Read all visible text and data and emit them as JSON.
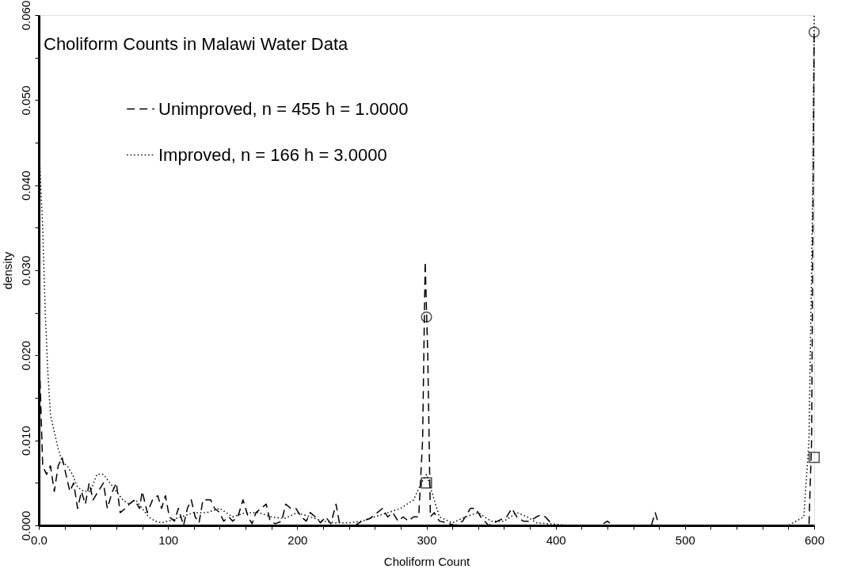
{
  "chart_data": {
    "type": "line",
    "title": "Choliform Counts in Malawi Water Data",
    "xlabel": "Choliform Count",
    "ylabel": "density",
    "xlim": [
      0,
      600
    ],
    "ylim": [
      0,
      0.06
    ],
    "xticks": [
      {
        "value": 0,
        "label": "0.0"
      },
      {
        "value": 20,
        "label": null
      },
      {
        "value": 40,
        "label": null
      },
      {
        "value": 60,
        "label": null
      },
      {
        "value": 80,
        "label": null
      },
      100,
      {
        "value": 120,
        "label": null
      },
      {
        "value": 140,
        "label": null
      },
      {
        "value": 160,
        "label": null
      },
      {
        "value": 180,
        "label": null
      },
      200,
      {
        "value": 220,
        "label": null
      },
      {
        "value": 240,
        "label": null
      },
      {
        "value": 260,
        "label": null
      },
      {
        "value": 280,
        "label": null
      },
      300,
      {
        "value": 320,
        "label": null
      },
      {
        "value": 340,
        "label": null
      },
      {
        "value": 360,
        "label": null
      },
      {
        "value": 380,
        "label": null
      },
      400,
      {
        "value": 420,
        "label": null
      },
      {
        "value": 440,
        "label": null
      },
      {
        "value": 460,
        "label": null
      },
      {
        "value": 480,
        "label": null
      },
      500,
      {
        "value": 520,
        "label": null
      },
      {
        "value": 540,
        "label": null
      },
      {
        "value": 560,
        "label": null
      },
      {
        "value": 580,
        "label": null
      },
      600
    ],
    "yticks": [
      {
        "value": 0,
        "label": "0.000"
      },
      {
        "value": 0.005,
        "label": null
      },
      {
        "value": 0.01,
        "label": "0.010"
      },
      {
        "value": 0.015,
        "label": null
      },
      {
        "value": 0.02,
        "label": "0.020"
      },
      {
        "value": 0.025,
        "label": null
      },
      {
        "value": 0.03,
        "label": "0.030"
      },
      {
        "value": 0.035,
        "label": null
      },
      {
        "value": 0.04,
        "label": "0.040"
      },
      {
        "value": 0.045,
        "label": null
      },
      {
        "value": 0.05,
        "label": "0.050"
      },
      {
        "value": 0.055,
        "label": null
      },
      {
        "value": 0.06,
        "label": "0.060"
      }
    ],
    "grid": false,
    "legend": "top",
    "series": [
      {
        "name": "Unimproved, n = 455   h = 1.0000",
        "line_style": "dashed",
        "color": "#000000",
        "x": [
          1,
          3,
          6,
          9,
          12,
          15,
          18,
          21,
          24,
          27,
          30,
          33,
          36,
          39,
          42,
          46,
          50,
          53,
          57,
          60,
          63,
          67,
          70,
          74,
          78,
          80,
          84,
          88,
          92,
          95,
          98,
          101,
          105,
          108,
          112,
          115,
          118,
          121,
          124,
          127,
          130,
          133,
          136,
          140,
          143,
          147,
          150,
          154,
          158,
          162,
          165,
          168,
          172,
          176,
          179,
          183,
          188,
          191,
          195,
          199,
          203,
          207,
          210,
          214,
          218,
          222,
          226,
          230,
          233,
          245,
          250,
          256,
          262,
          266,
          270,
          274,
          278,
          282,
          286,
          290,
          294,
          297,
          299,
          301,
          303,
          306,
          310,
          316,
          322,
          328,
          334,
          338,
          342,
          348,
          355,
          362,
          366,
          370,
          375,
          380,
          385,
          388,
          392,
          398,
          435,
          440,
          444,
          474,
          477,
          480,
          596,
          598,
          600
        ],
        "values": [
          0.017,
          0.007,
          0.006,
          0.007,
          0.004,
          0.007,
          0.008,
          0.006,
          0.004,
          0.005,
          0.002,
          0.004,
          0.0025,
          0.005,
          0.003,
          0.004,
          0.005,
          0.002,
          0.004,
          0.005,
          0.0015,
          0.002,
          0.0025,
          0.003,
          0.002,
          0.004,
          0.0015,
          0.003,
          0.0035,
          0.002,
          0.0035,
          0.001,
          0.0005,
          0.002,
          0,
          0.002,
          0.003,
          0.001,
          0.0003,
          0.003,
          0.003,
          0.003,
          0.002,
          0.0015,
          0.0005,
          0.001,
          0.0005,
          0.001,
          0.003,
          0.001,
          0.0002,
          0.0015,
          0.002,
          0.0025,
          0.0005,
          0.0002,
          0.0005,
          0.0025,
          0.002,
          0.002,
          0.001,
          0.0005,
          0.0015,
          0.001,
          0.0003,
          0.001,
          0.0002,
          0.0025,
          0,
          0,
          0.0005,
          0.0008,
          0.0015,
          0.002,
          0.001,
          0.0015,
          0.0005,
          0.001,
          0.0005,
          0.001,
          0.001,
          0.01,
          0.031,
          0.02,
          0.001,
          0.0015,
          0.0005,
          0.0003,
          0,
          0.0005,
          0.002,
          0.002,
          0.001,
          0,
          0.0005,
          0.001,
          0.002,
          0.001,
          0.0005,
          0.0005,
          0.001,
          0.0012,
          0.001,
          0,
          0,
          0.0005,
          0,
          0,
          0.0015,
          0,
          0,
          0.01,
          0.058
        ]
      },
      {
        "name": "Improved, n = 166   h = 3.0000",
        "line_style": "dotted",
        "color": "#000000",
        "x": [
          0,
          3,
          5,
          7,
          9,
          12,
          15,
          18,
          22,
          26,
          30,
          35,
          40,
          45,
          50,
          55,
          60,
          65,
          70,
          75,
          80,
          85,
          90,
          95,
          100,
          110,
          120,
          130,
          140,
          150,
          160,
          170,
          180,
          190,
          200,
          210,
          220,
          230,
          240,
          250,
          260,
          270,
          280,
          290,
          296,
          300,
          304,
          310,
          320,
          330,
          340,
          350,
          360,
          370,
          378,
          385,
          395,
          410,
          580,
          592,
          596,
          599,
          600
        ],
        "values": [
          0.045,
          0.035,
          0.025,
          0.018,
          0.013,
          0.011,
          0.009,
          0.0075,
          0.007,
          0.006,
          0.0045,
          0.004,
          0.004,
          0.006,
          0.006,
          0.005,
          0.004,
          0.003,
          0.0025,
          0.003,
          0.002,
          0.001,
          0.0005,
          0.0003,
          0.0005,
          0.001,
          0.0015,
          0.0015,
          0.002,
          0.001,
          0.0015,
          0.0015,
          0.001,
          0.0008,
          0.0015,
          0.001,
          0.0005,
          0.0003,
          0.0003,
          0.0005,
          0.001,
          0.0015,
          0.002,
          0.003,
          0.005,
          0.006,
          0.004,
          0.001,
          0.0003,
          0.001,
          0.0015,
          0.0005,
          0.0005,
          0.0015,
          0.001,
          0.0003,
          0.0002,
          0,
          0,
          0.001,
          0.01,
          0.04,
          0.06
        ]
      },
      {
        "type": "scatter",
        "marker": "circle",
        "color": "#000000",
        "x": [
          300,
          600
        ],
        "values": [
          0.0245,
          0.058
        ]
      },
      {
        "type": "scatter",
        "marker": "square",
        "color": "#000000",
        "x": [
          300,
          600
        ],
        "values": [
          0.005,
          0.008
        ]
      }
    ]
  }
}
